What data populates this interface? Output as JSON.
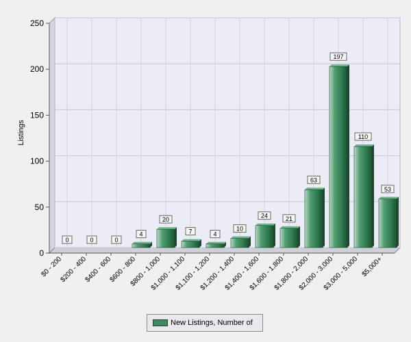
{
  "chart_data": {
    "type": "bar",
    "title": "",
    "xlabel": "",
    "ylabel": "Listings",
    "ylim": [
      0,
      250
    ],
    "yticks": [
      0,
      50,
      100,
      150,
      200,
      250
    ],
    "grid": true,
    "legend_position": "bottom-center",
    "categories": [
      "$0 - 200",
      "$200 - 400",
      "$400 - 600",
      "$600 - 800",
      "$800 - 1,000",
      "$1,000 - 1,100",
      "$1,100 - 1,200",
      "$1,200 - 1,400",
      "$1,400 - 1,600",
      "$1,600 - 1,800",
      "$1,800 - 2,000",
      "$2,000 - 3,000",
      "$3,000 - 5,000",
      "$5,000+"
    ],
    "series": [
      {
        "name": "New Listings, Number of",
        "color": "#3c8a5e",
        "values": [
          0,
          0,
          0,
          4,
          20,
          7,
          4,
          10,
          24,
          21,
          63,
          197,
          110,
          53
        ]
      }
    ]
  },
  "legend": {
    "label": "New Listings, Number of",
    "color": "#3c8a5e"
  }
}
